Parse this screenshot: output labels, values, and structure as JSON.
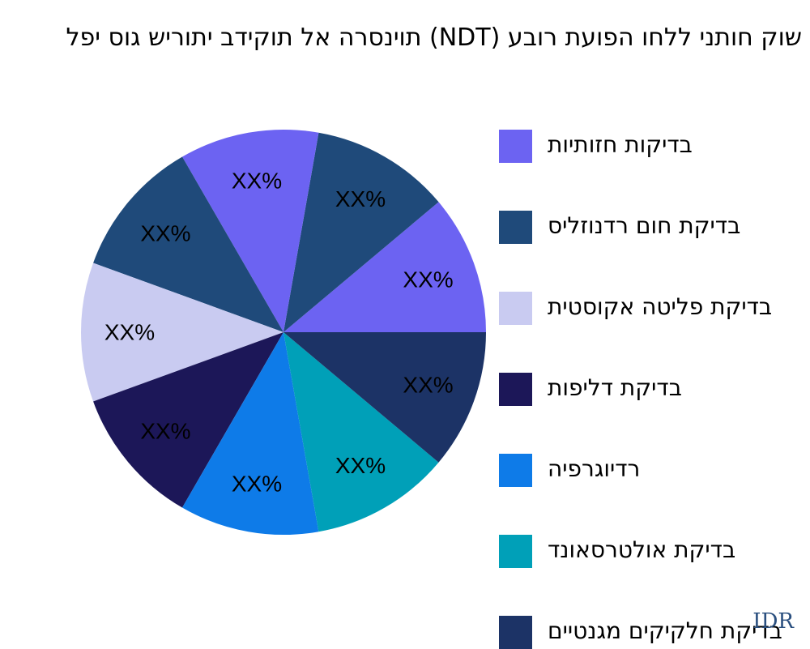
{
  "title": "שוק חותני ללחו הפועת רובע (NDT) תוינסרה אל תוקידב יתוריש גוס יפל",
  "watermark": "IDR",
  "chart_data": {
    "type": "pie",
    "title": "שוק חותני ללחו הפועת רובע (NDT) תוינסרה אל תוקידב יתוריש גוס יפל",
    "slices": [
      {
        "label": "XX%",
        "value": 11.11,
        "color": "#6c63f2"
      },
      {
        "label": "XX%",
        "value": 11.11,
        "color": "#1f4a7a"
      },
      {
        "label": "XX%",
        "value": 11.11,
        "color": "#6c63f2"
      },
      {
        "label": "XX%",
        "value": 11.11,
        "color": "#1f4a7a"
      },
      {
        "label": "XX%",
        "value": 11.11,
        "color": "#c9cbf1"
      },
      {
        "label": "XX%",
        "value": 11.11,
        "color": "#1c1758"
      },
      {
        "label": "XX%",
        "value": 11.11,
        "color": "#0e7be8"
      },
      {
        "label": "XX%",
        "value": 11.11,
        "color": "#00a0b8"
      },
      {
        "label": "XX%",
        "value": 11.11,
        "color": "#1c3366"
      }
    ],
    "legend": [
      {
        "name": "בדיקות חזותיות",
        "color": "#6c63f2"
      },
      {
        "name": "בדיקת חום רדנוזליס",
        "color": "#1f4a7a"
      },
      {
        "name": "בדיקת פליטה אקוסטית",
        "color": "#c9cbf1"
      },
      {
        "name": "בדיקת דליפות",
        "color": "#1c1758"
      },
      {
        "name": "רדיוגרפיה",
        "color": "#0e7be8"
      },
      {
        "name": "בדיקת אולטרסאונד",
        "color": "#00a0b8"
      },
      {
        "name": "בדיקת חלקיקים מגנטיים",
        "color": "#1c3366"
      }
    ],
    "legend_position": "right"
  }
}
